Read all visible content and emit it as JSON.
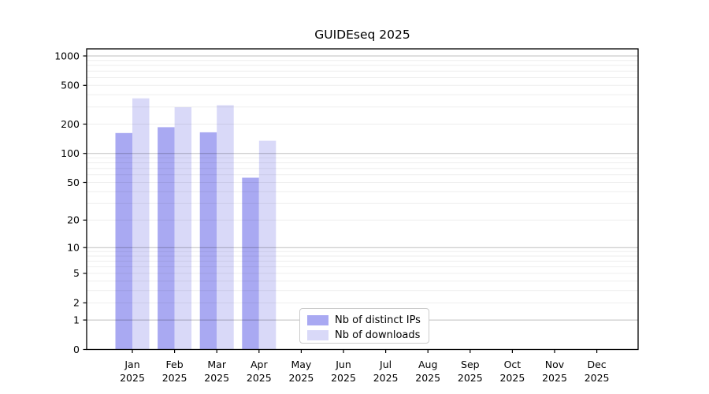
{
  "title": "GUIDEseq 2025",
  "chart_data": {
    "type": "bar",
    "title": "GUIDEseq 2025",
    "categories": [
      "Jan 2025",
      "Feb 2025",
      "Mar 2025",
      "Apr 2025",
      "May 2025",
      "Jun 2025",
      "Jul 2025",
      "Aug 2025",
      "Sep 2025",
      "Oct 2025",
      "Nov 2025",
      "Dec 2025"
    ],
    "series": [
      {
        "name": "Nb of distinct IPs",
        "color": "#a9a9f2",
        "values": [
          162,
          186,
          165,
          56,
          null,
          null,
          null,
          null,
          null,
          null,
          null,
          null
        ]
      },
      {
        "name": "Nb of downloads",
        "color": "#d9d9f8",
        "values": [
          368,
          298,
          313,
          135,
          null,
          null,
          null,
          null,
          null,
          null,
          null,
          null
        ]
      }
    ],
    "yscale": "symlog",
    "yticks": [
      0,
      1,
      2,
      5,
      10,
      20,
      50,
      100,
      200,
      500,
      1000
    ],
    "ylim": [
      0,
      1185
    ],
    "xlabel": "",
    "ylabel": "",
    "grid": true,
    "legend_position": "lower center"
  }
}
